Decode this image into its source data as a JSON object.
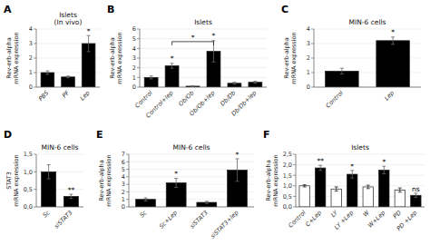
{
  "chart_data": [
    {
      "type": "bar",
      "panel": "A",
      "title": "Islets\n(In vivo)",
      "ylabel": "Rev-erb-alpha\nmRNA expression",
      "categories": [
        "PBS",
        "PF",
        "Lep"
      ],
      "values": [
        1.0,
        0.7,
        3.0
      ],
      "errors": [
        0.12,
        0.06,
        0.55
      ],
      "color": "black",
      "ylim": [
        0,
        4
      ],
      "yticks": [
        0,
        1,
        2,
        3,
        4
      ],
      "annotations": [
        null,
        null,
        "*"
      ]
    },
    {
      "type": "bar",
      "panel": "B",
      "title": "Islets",
      "ylabel": "Rev-erb-alpha\nmRNA expression",
      "categories": [
        "Control",
        "Control+lep",
        "Ob/Ob",
        "Ob/Ob+lep",
        "Db/Db",
        "Db/Db+lep"
      ],
      "values": [
        1.0,
        2.2,
        0.1,
        3.7,
        0.4,
        0.5
      ],
      "errors": [
        0.15,
        0.25,
        0.05,
        1.1,
        0.1,
        0.1
      ],
      "color": "black",
      "ylim": [
        0,
        6
      ],
      "yticks": [
        0,
        1,
        2,
        3,
        4,
        5,
        6
      ],
      "annotations": [
        null,
        "*",
        null,
        "*",
        null,
        null
      ],
      "bracket": {
        "from": "Control+lep",
        "to": "Ob/Ob+lep",
        "y": 4.7,
        "text": "*"
      }
    },
    {
      "type": "bar",
      "panel": "C",
      "title": "MIN-6 cells",
      "ylabel": "Rev-erb-alpha\nmRNA expression",
      "categories": [
        "Control",
        "Lep"
      ],
      "values": [
        1.1,
        3.2
      ],
      "errors": [
        0.2,
        0.25
      ],
      "color": "black",
      "ylim": [
        0,
        4
      ],
      "yticks": [
        0,
        1,
        2,
        3,
        4
      ],
      "annotations": [
        null,
        "*"
      ]
    },
    {
      "type": "bar",
      "panel": "D",
      "title": "MIN-6 cells",
      "ylabel": "STAT3\nmRNA expression",
      "categories": [
        "Sc",
        "siSTAT3"
      ],
      "values": [
        1.0,
        0.3
      ],
      "errors": [
        0.2,
        0.06
      ],
      "color": "black",
      "ylim": [
        0,
        1.5
      ],
      "yticks": [
        {
          "value": 0.0,
          "label": "0,0"
        },
        {
          "value": 0.5,
          "label": "0,5"
        },
        {
          "value": 1.0,
          "label": "1,0"
        },
        {
          "value": 1.5,
          "label": "1,5"
        }
      ],
      "annotations": [
        null,
        "**"
      ]
    },
    {
      "type": "bar",
      "panel": "E",
      "title": "MIN-6 cells",
      "ylabel": "Rev-erb-alpha\nmRNA expression",
      "categories": [
        "Sc",
        "Sc+Lep",
        "siSTAT3",
        "siSTAT3+lep"
      ],
      "values": [
        1.0,
        3.2,
        0.6,
        4.9
      ],
      "errors": [
        0.2,
        0.6,
        0.15,
        1.5
      ],
      "color": "black",
      "ylim": [
        0,
        7
      ],
      "yticks": [
        0,
        1,
        2,
        3,
        4,
        5,
        6,
        7
      ],
      "annotations": [
        null,
        "*",
        null,
        "*"
      ]
    },
    {
      "type": "bar",
      "panel": "F",
      "title": "Islets",
      "ylabel": "Rev-erb-alpha\nmRNA expression",
      "categories": [
        "Control",
        "C+Lep",
        "LY",
        "LY +Lep",
        "W",
        "W+Lep",
        "PD",
        "PD +Lep"
      ],
      "values": [
        1.0,
        1.85,
        0.85,
        1.55,
        0.95,
        1.75,
        0.8,
        0.55
      ],
      "errors": [
        0.05,
        0.12,
        0.1,
        0.18,
        0.08,
        0.18,
        0.1,
        0.1
      ],
      "colors": [
        "white",
        "black",
        "white",
        "black",
        "white",
        "black",
        "white",
        "black"
      ],
      "ylim": [
        0,
        2.5
      ],
      "yticks": [
        {
          "value": 0.0,
          "label": "0,0"
        },
        {
          "value": 0.5,
          "label": "0,5"
        },
        {
          "value": 1.0,
          "label": "1,0"
        },
        {
          "value": 1.5,
          "label": "1,5"
        },
        {
          "value": 2.0,
          "label": "2,0"
        },
        {
          "value": 2.5,
          "label": "2,5"
        }
      ],
      "annotations": [
        null,
        "**",
        null,
        "*",
        null,
        "*",
        null,
        "ns"
      ]
    }
  ]
}
